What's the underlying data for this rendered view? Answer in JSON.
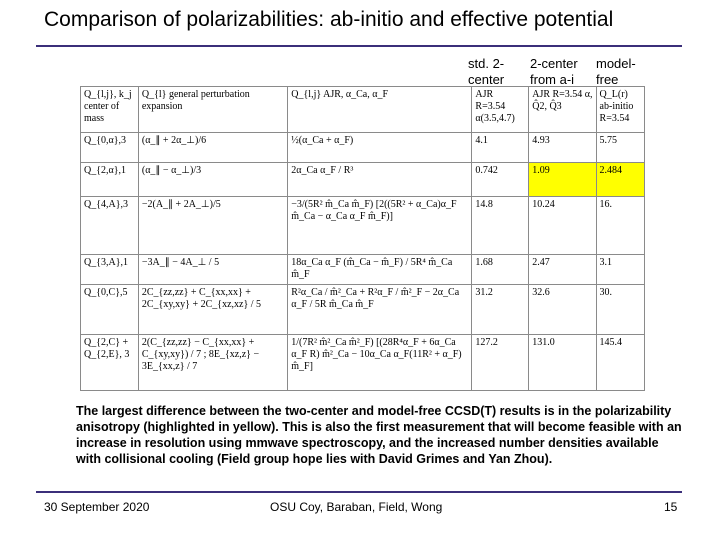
{
  "slide": {
    "title": "Comparison of polarizabilities: ab-initio and effective potential"
  },
  "column_headers": {
    "std2": "std. 2-center",
    "twocenter": "2-center from a-i",
    "modelfree": "model-free"
  },
  "table": {
    "rows": [
      [
        "Q_{l,j}, k_j center of mass",
        "Q_{l} general perturbation expansion",
        "Q_{l,j} AJR, α_Ca, α_F",
        "AJR R=3.54 α(3.5,4.7)",
        "AJR R=3.54 α, Q̂2, Q̂3",
        "Q_L(r) ab-initio R=3.54"
      ],
      [
        "Q_{0,α},3",
        "(α_∥ + 2α_⊥)/6",
        "½(α_Ca + α_F)",
        "4.1",
        "4.93",
        "5.75"
      ],
      [
        "Q_{2,α},1",
        "(α_∥ − α_⊥)/3",
        "2α_Ca α_F / R³",
        "0.742",
        "1.09",
        "2.484"
      ],
      [
        "Q_{4,A},3",
        "−2(A_∥ + 2A_⊥)/5",
        "−3/(5R² m̂_Ca m̂_F) [2((5R² + α_Ca)α_F m̂_Ca − α_Ca α_F m̂_F)]",
        "14.8",
        "10.24",
        "16."
      ],
      [
        "Q_{3,A},1",
        "−3A_∥ − 4A_⊥ / 5",
        "18α_Ca α_F (m̂_Ca − m̂_F) / 5R⁴ m̂_Ca m̂_F",
        "1.68",
        "2.47",
        "3.1"
      ],
      [
        "Q_{0,C},5",
        "2C_{zz,zz} + C_{xx,xx} + 2C_{xy,xy} + 2C_{xz,xz} / 5",
        "R²α_Ca / m̂²_Ca + R²α_F / m̂²_F − 2α_Ca α_F / 5R m̂_Ca m̂_F",
        "31.2",
        "32.6",
        "30."
      ],
      [
        "Q_{2,C} + Q_{2,E}, 3",
        "2(C_{zz,zz} − C_{xx,xx} + C_{xy,xy}) / 7 ; 8E_{xz,z} − 3E_{xx,z} / 7",
        "1/(7R² m̂²_Ca m̂²_F) [(28R⁴α_F + 6α_Ca α_F R) m̂²_Ca − 10α_Ca α_F(11R² + α_F) m̂_F]",
        "127.2",
        "131.0",
        "145.4"
      ]
    ],
    "highlight_row": 2
  },
  "body_text": "The largest difference between the two-center and model-free CCSD(T) results is in the polarizability anisotropy (highlighted in yellow). This is also the first measurement that will become feasible with an increase in resolution using mmwave spectroscopy, and the increased number densities available with collisional cooling (Field group hope lies with David Grimes and Yan Zhou).",
  "footer": {
    "date": "30 September 2020",
    "authors": "OSU Coy, Baraban, Field, Wong",
    "page": "15"
  },
  "colors": {
    "rule": "#3b2f7a",
    "highlight": "#ffff00"
  }
}
